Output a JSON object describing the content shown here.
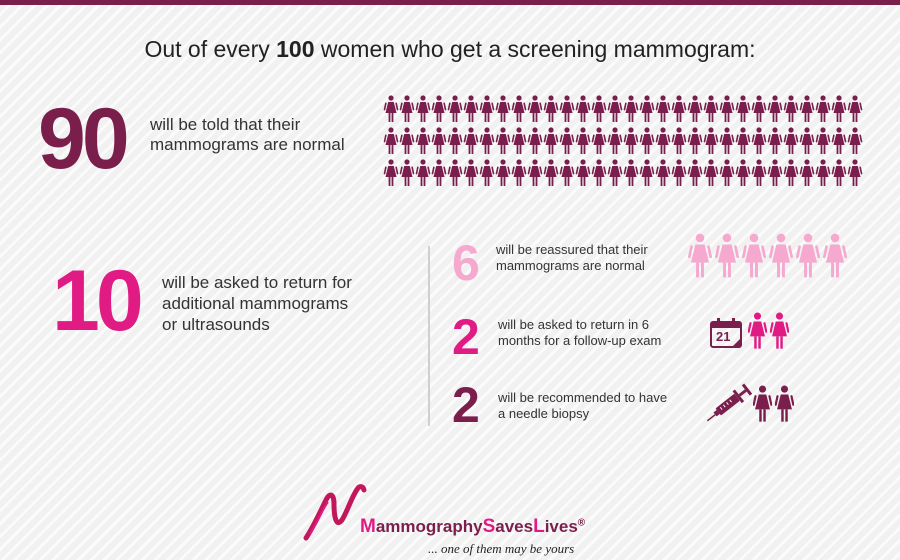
{
  "header": {
    "pre": "Out of every ",
    "count": "100",
    "post": " women who get a screening mammogram:"
  },
  "stat_90": {
    "number": "90",
    "line1": "will be told that their",
    "line2": "mammograms are normal",
    "icon_count": 90,
    "color": "#7a1f4c"
  },
  "stat_10": {
    "number": "10",
    "line1": "will be asked to return for",
    "line2": "additional mammograms",
    "line3": "or ultrasounds",
    "color": "#e01b84"
  },
  "stat_6": {
    "number": "6",
    "line1": "will be reassured that their",
    "line2": "mammograms are normal",
    "icon_count": 6,
    "color": "#f6a9cf"
  },
  "stat_2a": {
    "number": "2",
    "line1": "will be asked to return in 6",
    "line2": "months for a follow-up exam",
    "icon_count": 2,
    "calendar_day": "21",
    "color": "#e01b84"
  },
  "stat_2b": {
    "number": "2",
    "line1": "will be recommended to have",
    "line2": "a needle biopsy",
    "icon_count": 2,
    "color": "#7a1f4c"
  },
  "logo": {
    "part1": "ammography",
    "part2": "aves",
    "part3": "ives",
    "m": "M",
    "s": "S",
    "l": "L",
    "reg": "®"
  },
  "tagline": "... one of them may be yours",
  "icons": {
    "woman": "woman-icon",
    "calendar": "calendar-icon",
    "syringe": "syringe-icon",
    "ribbon": "ribbon-icon"
  }
}
